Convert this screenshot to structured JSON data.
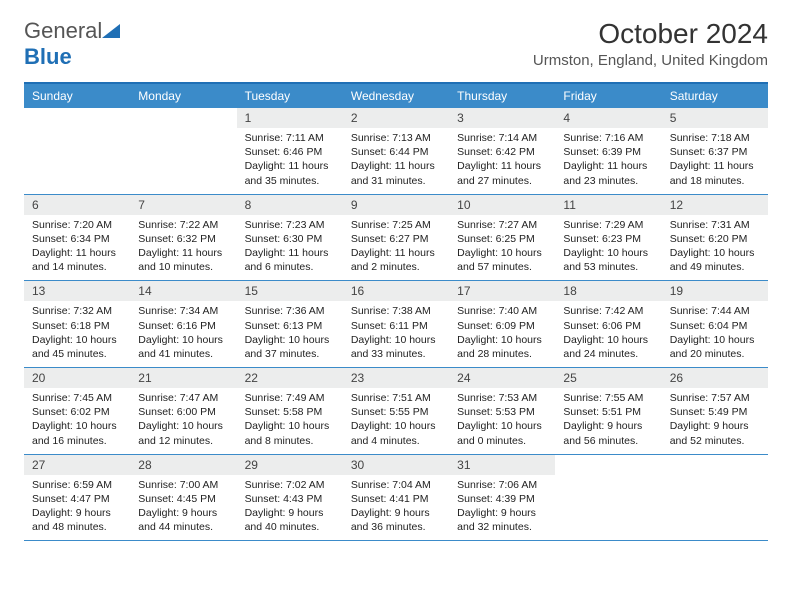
{
  "logo": {
    "text_gray": "General",
    "text_blue": "Blue"
  },
  "title": "October 2024",
  "location": "Urmston, England, United Kingdom",
  "day_names": [
    "Sunday",
    "Monday",
    "Tuesday",
    "Wednesday",
    "Thursday",
    "Friday",
    "Saturday"
  ],
  "colors": {
    "header_bg": "#3b8bc9",
    "border_top": "#1f6fb5",
    "daynum_bg": "#eceded",
    "week_border": "#3b8bc9"
  },
  "weeks": [
    [
      null,
      null,
      {
        "n": "1",
        "sr": "Sunrise: 7:11 AM",
        "ss": "Sunset: 6:46 PM",
        "dl": "Daylight: 11 hours and 35 minutes."
      },
      {
        "n": "2",
        "sr": "Sunrise: 7:13 AM",
        "ss": "Sunset: 6:44 PM",
        "dl": "Daylight: 11 hours and 31 minutes."
      },
      {
        "n": "3",
        "sr": "Sunrise: 7:14 AM",
        "ss": "Sunset: 6:42 PM",
        "dl": "Daylight: 11 hours and 27 minutes."
      },
      {
        "n": "4",
        "sr": "Sunrise: 7:16 AM",
        "ss": "Sunset: 6:39 PM",
        "dl": "Daylight: 11 hours and 23 minutes."
      },
      {
        "n": "5",
        "sr": "Sunrise: 7:18 AM",
        "ss": "Sunset: 6:37 PM",
        "dl": "Daylight: 11 hours and 18 minutes."
      }
    ],
    [
      {
        "n": "6",
        "sr": "Sunrise: 7:20 AM",
        "ss": "Sunset: 6:34 PM",
        "dl": "Daylight: 11 hours and 14 minutes."
      },
      {
        "n": "7",
        "sr": "Sunrise: 7:22 AM",
        "ss": "Sunset: 6:32 PM",
        "dl": "Daylight: 11 hours and 10 minutes."
      },
      {
        "n": "8",
        "sr": "Sunrise: 7:23 AM",
        "ss": "Sunset: 6:30 PM",
        "dl": "Daylight: 11 hours and 6 minutes."
      },
      {
        "n": "9",
        "sr": "Sunrise: 7:25 AM",
        "ss": "Sunset: 6:27 PM",
        "dl": "Daylight: 11 hours and 2 minutes."
      },
      {
        "n": "10",
        "sr": "Sunrise: 7:27 AM",
        "ss": "Sunset: 6:25 PM",
        "dl": "Daylight: 10 hours and 57 minutes."
      },
      {
        "n": "11",
        "sr": "Sunrise: 7:29 AM",
        "ss": "Sunset: 6:23 PM",
        "dl": "Daylight: 10 hours and 53 minutes."
      },
      {
        "n": "12",
        "sr": "Sunrise: 7:31 AM",
        "ss": "Sunset: 6:20 PM",
        "dl": "Daylight: 10 hours and 49 minutes."
      }
    ],
    [
      {
        "n": "13",
        "sr": "Sunrise: 7:32 AM",
        "ss": "Sunset: 6:18 PM",
        "dl": "Daylight: 10 hours and 45 minutes."
      },
      {
        "n": "14",
        "sr": "Sunrise: 7:34 AM",
        "ss": "Sunset: 6:16 PM",
        "dl": "Daylight: 10 hours and 41 minutes."
      },
      {
        "n": "15",
        "sr": "Sunrise: 7:36 AM",
        "ss": "Sunset: 6:13 PM",
        "dl": "Daylight: 10 hours and 37 minutes."
      },
      {
        "n": "16",
        "sr": "Sunrise: 7:38 AM",
        "ss": "Sunset: 6:11 PM",
        "dl": "Daylight: 10 hours and 33 minutes."
      },
      {
        "n": "17",
        "sr": "Sunrise: 7:40 AM",
        "ss": "Sunset: 6:09 PM",
        "dl": "Daylight: 10 hours and 28 minutes."
      },
      {
        "n": "18",
        "sr": "Sunrise: 7:42 AM",
        "ss": "Sunset: 6:06 PM",
        "dl": "Daylight: 10 hours and 24 minutes."
      },
      {
        "n": "19",
        "sr": "Sunrise: 7:44 AM",
        "ss": "Sunset: 6:04 PM",
        "dl": "Daylight: 10 hours and 20 minutes."
      }
    ],
    [
      {
        "n": "20",
        "sr": "Sunrise: 7:45 AM",
        "ss": "Sunset: 6:02 PM",
        "dl": "Daylight: 10 hours and 16 minutes."
      },
      {
        "n": "21",
        "sr": "Sunrise: 7:47 AM",
        "ss": "Sunset: 6:00 PM",
        "dl": "Daylight: 10 hours and 12 minutes."
      },
      {
        "n": "22",
        "sr": "Sunrise: 7:49 AM",
        "ss": "Sunset: 5:58 PM",
        "dl": "Daylight: 10 hours and 8 minutes."
      },
      {
        "n": "23",
        "sr": "Sunrise: 7:51 AM",
        "ss": "Sunset: 5:55 PM",
        "dl": "Daylight: 10 hours and 4 minutes."
      },
      {
        "n": "24",
        "sr": "Sunrise: 7:53 AM",
        "ss": "Sunset: 5:53 PM",
        "dl": "Daylight: 10 hours and 0 minutes."
      },
      {
        "n": "25",
        "sr": "Sunrise: 7:55 AM",
        "ss": "Sunset: 5:51 PM",
        "dl": "Daylight: 9 hours and 56 minutes."
      },
      {
        "n": "26",
        "sr": "Sunrise: 7:57 AM",
        "ss": "Sunset: 5:49 PM",
        "dl": "Daylight: 9 hours and 52 minutes."
      }
    ],
    [
      {
        "n": "27",
        "sr": "Sunrise: 6:59 AM",
        "ss": "Sunset: 4:47 PM",
        "dl": "Daylight: 9 hours and 48 minutes."
      },
      {
        "n": "28",
        "sr": "Sunrise: 7:00 AM",
        "ss": "Sunset: 4:45 PM",
        "dl": "Daylight: 9 hours and 44 minutes."
      },
      {
        "n": "29",
        "sr": "Sunrise: 7:02 AM",
        "ss": "Sunset: 4:43 PM",
        "dl": "Daylight: 9 hours and 40 minutes."
      },
      {
        "n": "30",
        "sr": "Sunrise: 7:04 AM",
        "ss": "Sunset: 4:41 PM",
        "dl": "Daylight: 9 hours and 36 minutes."
      },
      {
        "n": "31",
        "sr": "Sunrise: 7:06 AM",
        "ss": "Sunset: 4:39 PM",
        "dl": "Daylight: 9 hours and 32 minutes."
      },
      null,
      null
    ]
  ]
}
